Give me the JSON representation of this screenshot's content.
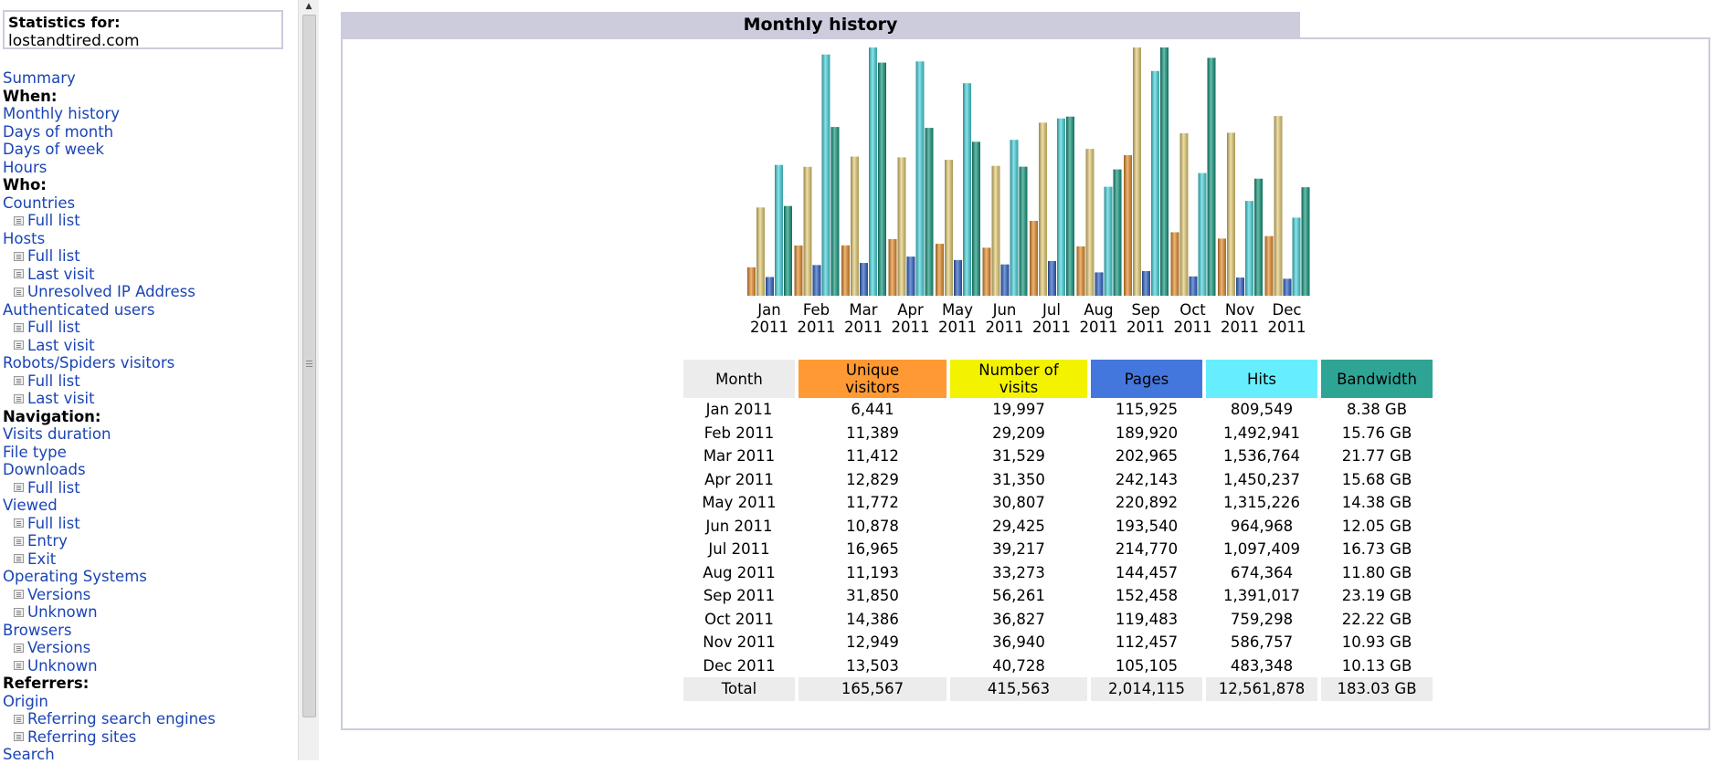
{
  "stats_box": {
    "label": "Statistics for:",
    "domain": "lostandtired.com"
  },
  "nav": [
    {
      "text": "Summary",
      "type": "link"
    },
    {
      "text": "When:",
      "type": "head"
    },
    {
      "text": "Monthly history",
      "type": "link"
    },
    {
      "text": "Days of month",
      "type": "link"
    },
    {
      "text": "Days of week",
      "type": "link"
    },
    {
      "text": "Hours",
      "type": "link"
    },
    {
      "text": "Who:",
      "type": "head"
    },
    {
      "text": "Countries",
      "type": "link"
    },
    {
      "text": "Full list",
      "type": "sub"
    },
    {
      "text": "Hosts",
      "type": "link"
    },
    {
      "text": "Full list",
      "type": "sub"
    },
    {
      "text": "Last visit",
      "type": "sub"
    },
    {
      "text": "Unresolved IP Address",
      "type": "sub"
    },
    {
      "text": "Authenticated users",
      "type": "link"
    },
    {
      "text": "Full list",
      "type": "sub"
    },
    {
      "text": "Last visit",
      "type": "sub"
    },
    {
      "text": "Robots/Spiders visitors",
      "type": "link"
    },
    {
      "text": "Full list",
      "type": "sub"
    },
    {
      "text": "Last visit",
      "type": "sub"
    },
    {
      "text": "Navigation:",
      "type": "head"
    },
    {
      "text": "Visits duration",
      "type": "link"
    },
    {
      "text": "File type",
      "type": "link"
    },
    {
      "text": "Downloads",
      "type": "link"
    },
    {
      "text": "Full list",
      "type": "sub"
    },
    {
      "text": "Viewed",
      "type": "link"
    },
    {
      "text": "Full list",
      "type": "sub"
    },
    {
      "text": "Entry",
      "type": "sub"
    },
    {
      "text": "Exit",
      "type": "sub"
    },
    {
      "text": "Operating Systems",
      "type": "link"
    },
    {
      "text": "Versions",
      "type": "sub"
    },
    {
      "text": "Unknown",
      "type": "sub"
    },
    {
      "text": "Browsers",
      "type": "link"
    },
    {
      "text": "Versions",
      "type": "sub"
    },
    {
      "text": "Unknown",
      "type": "sub"
    },
    {
      "text": "Referrers:",
      "type": "head"
    },
    {
      "text": "Origin",
      "type": "link"
    },
    {
      "text": "Referring search engines",
      "type": "sub"
    },
    {
      "text": "Referring sites",
      "type": "sub"
    },
    {
      "text": "Search",
      "type": "link"
    }
  ],
  "main": {
    "title": "Monthly history"
  },
  "table": {
    "headers": [
      {
        "label": "Month",
        "color": "#ececec"
      },
      {
        "label": "Unique visitors",
        "color": "#ff9933"
      },
      {
        "label": "Number of visits",
        "color": "#f3f300"
      },
      {
        "label": "Pages",
        "color": "#4477dd"
      },
      {
        "label": "Hits",
        "color": "#66eeff"
      },
      {
        "label": "Bandwidth",
        "color": "#2ea495"
      }
    ],
    "rows": [
      [
        "Jan 2011",
        "6,441",
        "19,997",
        "115,925",
        "809,549",
        "8.38 GB"
      ],
      [
        "Feb 2011",
        "11,389",
        "29,209",
        "189,920",
        "1,492,941",
        "15.76 GB"
      ],
      [
        "Mar 2011",
        "11,412",
        "31,529",
        "202,965",
        "1,536,764",
        "21.77 GB"
      ],
      [
        "Apr 2011",
        "12,829",
        "31,350",
        "242,143",
        "1,450,237",
        "15.68 GB"
      ],
      [
        "May 2011",
        "11,772",
        "30,807",
        "220,892",
        "1,315,226",
        "14.38 GB"
      ],
      [
        "Jun 2011",
        "10,878",
        "29,425",
        "193,540",
        "964,968",
        "12.05 GB"
      ],
      [
        "Jul 2011",
        "16,965",
        "39,217",
        "214,770",
        "1,097,409",
        "16.73 GB"
      ],
      [
        "Aug 2011",
        "11,193",
        "33,273",
        "144,457",
        "674,364",
        "11.80 GB"
      ],
      [
        "Sep 2011",
        "31,850",
        "56,261",
        "152,458",
        "1,391,017",
        "23.19 GB"
      ],
      [
        "Oct 2011",
        "14,386",
        "36,827",
        "119,483",
        "759,298",
        "22.22 GB"
      ],
      [
        "Nov 2011",
        "12,949",
        "36,940",
        "112,457",
        "586,757",
        "10.93 GB"
      ],
      [
        "Dec 2011",
        "13,503",
        "40,728",
        "105,105",
        "483,348",
        "10.13 GB"
      ]
    ],
    "total": [
      "Total",
      "165,567",
      "415,563",
      "2,014,115",
      "12,561,878",
      "183.03 GB"
    ]
  },
  "chart_data": {
    "type": "bar",
    "categories": [
      "Jan 2011",
      "Feb 2011",
      "Mar 2011",
      "Apr 2011",
      "May 2011",
      "Jun 2011",
      "Jul 2011",
      "Aug 2011",
      "Sep 2011",
      "Oct 2011",
      "Nov 2011",
      "Dec 2011"
    ],
    "tick_labels": [
      [
        "Jan",
        "2011"
      ],
      [
        "Feb",
        "2011"
      ],
      [
        "Mar",
        "2011"
      ],
      [
        "Apr",
        "2011"
      ],
      [
        "May",
        "2011"
      ],
      [
        "Jun",
        "2011"
      ],
      [
        "Jul",
        "2011"
      ],
      [
        "Aug",
        "2011"
      ],
      [
        "Sep",
        "2011"
      ],
      [
        "Oct",
        "2011"
      ],
      [
        "Nov",
        "2011"
      ],
      [
        "Dec",
        "2011"
      ]
    ],
    "series": [
      {
        "name": "Unique visitors",
        "color": "#e8902e",
        "values": [
          6441,
          11389,
          11412,
          12829,
          11772,
          10878,
          16965,
          11193,
          31850,
          14386,
          12949,
          13503
        ]
      },
      {
        "name": "Number of visits",
        "color": "#e8d078",
        "values": [
          19997,
          29209,
          31529,
          31350,
          30807,
          29425,
          39217,
          33273,
          56261,
          36827,
          36940,
          40728
        ]
      },
      {
        "name": "Pages",
        "color": "#2f64c8",
        "values": [
          115925,
          189920,
          202965,
          242143,
          220892,
          193540,
          214770,
          144457,
          152458,
          119483,
          112457,
          105105
        ]
      },
      {
        "name": "Hits",
        "color": "#4ad8e0",
        "values": [
          809549,
          1492941,
          1536764,
          1450237,
          1315226,
          964968,
          1097409,
          674364,
          1391017,
          759298,
          586757,
          483348
        ]
      },
      {
        "name": "Bandwidth",
        "color": "#179a80",
        "values": [
          8.38,
          15.76,
          21.77,
          15.68,
          14.38,
          12.05,
          16.73,
          11.8,
          23.19,
          22.22,
          10.93,
          10.13
        ]
      }
    ],
    "scale_groups": [
      [
        0,
        1
      ],
      [
        2,
        3
      ],
      [
        4
      ]
    ]
  }
}
